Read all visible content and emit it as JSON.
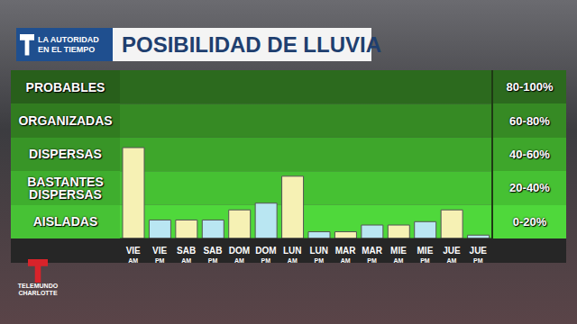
{
  "chart_data": {
    "type": "bar",
    "title": "POSIBILIDAD DE LLUVIA",
    "branding": {
      "logo_text": [
        "LA AUTORIDAD",
        "EN EL TIEMPO"
      ],
      "station": [
        "TELEMUNDO",
        "CHARLOTTE"
      ]
    },
    "categories": [
      "VIE AM",
      "VIE PM",
      "SAB AM",
      "SAB PM",
      "DOM AM",
      "DOM PM",
      "LUN AM",
      "LUN PM",
      "MAR AM",
      "MAR PM",
      "MIE AM",
      "MIE PM",
      "JUE AM",
      "JUE PM"
    ],
    "values": [
      54,
      11,
      11,
      11,
      17,
      21,
      37,
      4,
      4,
      8,
      8,
      10,
      17,
      2
    ],
    "colors": [
      "#f6f1b4",
      "#b9e6f2",
      "#f6f1b4",
      "#b9e6f2",
      "#f6f1b4",
      "#b9e6f2",
      "#f6f1b4",
      "#b9e6f2",
      "#f6f1b4",
      "#b9e6f2",
      "#f6f1b4",
      "#b9e6f2",
      "#f6f1b4",
      "#b9e6f2"
    ],
    "ylim": [
      0,
      100
    ],
    "tick_labels": "x",
    "grid": false,
    "bands": [
      {
        "label": "PROBABLES",
        "range_label": "80-100%",
        "from": 80,
        "to": 100,
        "color": "#2c6a1e"
      },
      {
        "label": "ORGANIZADAS",
        "range_label": "60-80%",
        "from": 60,
        "to": 80,
        "color": "#368a24"
      },
      {
        "label": "DISPERSAS",
        "range_label": "40-60%",
        "from": 40,
        "to": 60,
        "color": "#3ea62b"
      },
      {
        "label": "BASTANTES DISPERSAS",
        "range_label": "20-40%",
        "from": 20,
        "to": 40,
        "color": "#46c133"
      },
      {
        "label": "AISLADAS",
        "range_label": "0-20%",
        "from": 0,
        "to": 20,
        "color": "#4fd83b"
      }
    ]
  }
}
